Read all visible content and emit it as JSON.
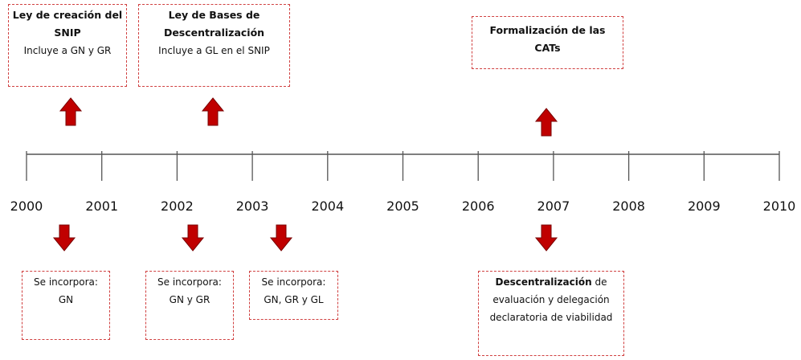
{
  "years": [
    "2000",
    "2001",
    "2002",
    "2003",
    "2004",
    "2005",
    "2006",
    "2007",
    "2008",
    "2009",
    "2010"
  ],
  "top_events": [
    {
      "title": "Ley de creación del SNIP",
      "detail": "Incluye a GN y GR"
    },
    {
      "title": "Ley de Bases de Descentralización",
      "detail": "Incluye a GL en el SNIP"
    },
    {
      "title": "Formalización de las CATs"
    }
  ],
  "bottom_events": [
    {
      "text": "Se incorpora: GN"
    },
    {
      "text": "Se incorpora: GN y GR"
    },
    {
      "text": "Se incorpora: GN, GR y GL"
    },
    {
      "bold": "Descentralización",
      "text": "de evaluación y delegación declaratoria de viabilidad"
    }
  ]
}
